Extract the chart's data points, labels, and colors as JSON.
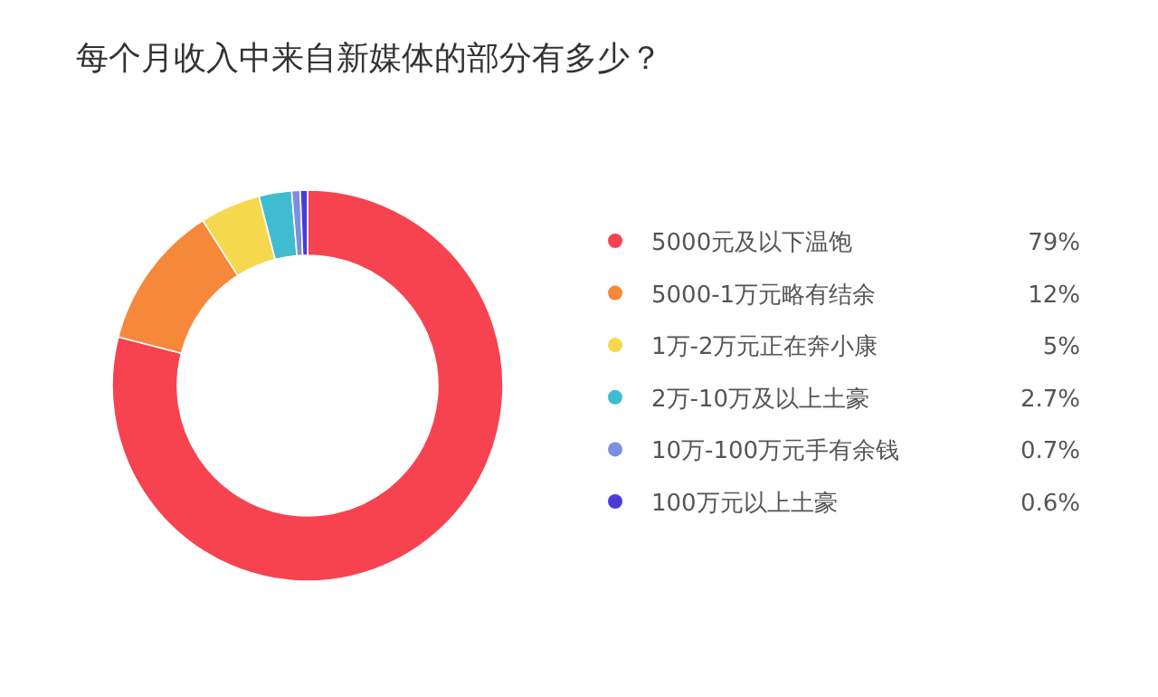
{
  "chart_data": {
    "type": "donut",
    "title": "每个月收入中来自新媒体的部分有多少？",
    "categories": [
      "5000元及以下温饱",
      "5000-1万元略有结余",
      "1万-2万元正在奔小康",
      "2万-10万及以上土豪",
      "10万-100万元手有余钱",
      "100万元以上土豪"
    ],
    "values": [
      79,
      12,
      5,
      2.7,
      0.7,
      0.6
    ],
    "value_labels": [
      "79%",
      "12%",
      "5%",
      "2.7%",
      "0.7%",
      "0.6%"
    ],
    "colors": [
      "#f7434f",
      "#f5883a",
      "#f6d84e",
      "#3fbcd0",
      "#7d8fe0",
      "#4b3bd6"
    ],
    "legend": "right"
  }
}
